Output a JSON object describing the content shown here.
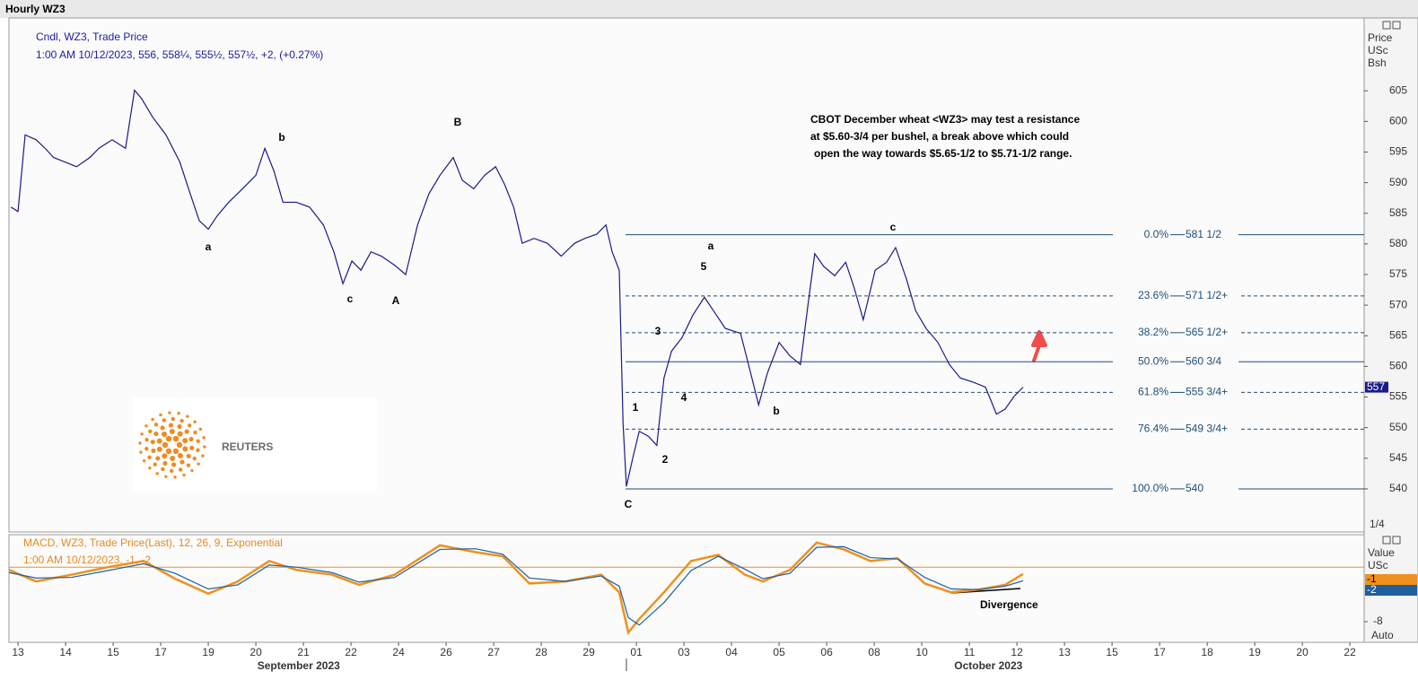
{
  "window_title": "Hourly WZ3",
  "chart_data": [
    {
      "type": "line",
      "legend": [
        "Cndl, WZ3, Trade Price",
        "1:00 AM 10/12/2023, 556, 558¼, 555½, 557½, +2, (+0.27%)"
      ],
      "y_label": [
        "Price",
        "USc",
        "Bsh"
      ],
      "annotation": [
        "CBOT December wheat <WZ3> may test a resistance",
        "at $5.60-3/4 per bushel, a break above which could",
        "open the way towards $5.65-1/2 to $5.71-1/2 range."
      ],
      "categories": [
        "13",
        "14",
        "15",
        "17",
        "19",
        "20",
        "21",
        "22",
        "24",
        "26",
        "27",
        "28",
        "29",
        "01",
        "03",
        "04",
        "05",
        "06",
        "08",
        "10",
        "11",
        "12",
        "13",
        "15",
        "17",
        "18",
        "19",
        "20",
        "22"
      ],
      "months": [
        "September 2023",
        "October 2023"
      ],
      "xlim": [
        -0.19,
        28.3
      ],
      "ylim": [
        533.4,
        616.6
      ],
      "yticks": [
        540,
        545,
        550,
        555,
        560,
        565,
        570,
        575,
        580,
        585,
        590,
        595,
        600,
        605
      ],
      "color": "#1a1a8c",
      "series": [
        {
          "name": "WZ3",
          "color": "#1a1a8c",
          "x": [
            -0.15,
            0,
            0.15,
            0.38,
            0.57,
            0.75,
            0.98,
            1.23,
            1.51,
            1.7,
            1.98,
            2.26,
            2.45,
            2.6,
            2.83,
            3.11,
            3.4,
            3.62,
            3.81,
            4,
            4.19,
            4.43,
            4.72,
            5,
            5.19,
            5.38,
            5.57,
            5.85,
            6.13,
            6.42,
            6.64,
            6.83,
            7.02,
            7.21,
            7.42,
            7.64,
            7.92,
            8.15,
            8.4,
            8.64,
            8.87,
            9.15,
            9.34,
            9.58,
            9.81,
            10.04,
            10.23,
            10.42,
            10.6,
            10.85,
            11.13,
            11.42,
            11.7,
            11.92,
            12.17,
            12.36,
            12.49,
            12.64,
            12.72,
            12.79,
            12.92,
            13.06,
            13.25,
            13.43,
            13.58,
            13.74,
            13.96,
            14.19,
            14.43,
            14.62,
            14.87,
            15.19,
            15.38,
            15.57,
            15.75,
            16,
            16.23,
            16.45,
            16.6,
            16.75,
            16.94,
            17.17,
            17.4,
            17.58,
            17.77,
            18.02,
            18.26,
            18.45,
            18.68,
            18.87,
            19.09,
            19.34,
            19.58,
            19.81,
            20.09,
            20.34,
            20.57,
            20.75,
            20.94,
            21.13
          ],
          "values": [
            586,
            585.3,
            597.8,
            597,
            595.6,
            594.1,
            593.4,
            592.6,
            594.1,
            595.6,
            597,
            595.6,
            605.1,
            603.7,
            600.7,
            597.8,
            593.4,
            588.2,
            583.8,
            582.4,
            584.6,
            586.8,
            589,
            591.2,
            595.6,
            591.9,
            586.8,
            586.8,
            586,
            583.1,
            578.7,
            573.5,
            577.2,
            575.7,
            578.7,
            578,
            576.5,
            575,
            583.1,
            588.2,
            591.2,
            594.1,
            590.4,
            589,
            591.2,
            592.6,
            589.7,
            586,
            580.1,
            580.9,
            580.1,
            578,
            580.1,
            580.9,
            581.6,
            583.1,
            578.7,
            575.7,
            550.7,
            540.4,
            544.9,
            549.4,
            548.6,
            547.1,
            558.1,
            562.5,
            564.7,
            568.4,
            571.3,
            569.1,
            566.2,
            565.4,
            559.6,
            553.7,
            558.8,
            563.9,
            561.7,
            560.3,
            569.6,
            578.4,
            576.3,
            574.8,
            577,
            572.8,
            567.6,
            575.7,
            577,
            579.4,
            574.2,
            569.1,
            566.2,
            563.9,
            560.3,
            558.1,
            557.4,
            556.6,
            552.2,
            553,
            555.1,
            556.6
          ]
        }
      ],
      "fib_levels": [
        {
          "label": "0.0%",
          "price_label": "581 1/2",
          "value": 581.5,
          "dashed": false
        },
        {
          "label": "23.6%",
          "price_label": "571 1/2+",
          "value": 571.5,
          "dashed": true
        },
        {
          "label": "38.2%",
          "price_label": "565 1/2+",
          "value": 565.5,
          "dashed": true
        },
        {
          "label": "50.0%",
          "price_label": "560 3/4",
          "value": 560.75,
          "dashed": false
        },
        {
          "label": "61.8%",
          "price_label": "555 3/4+",
          "value": 555.75,
          "dashed": true
        },
        {
          "label": "76.4%",
          "price_label": "549 3/4+",
          "value": 549.75,
          "dashed": true
        },
        {
          "label": "100.0%",
          "price_label": "540",
          "value": 540,
          "dashed": false
        }
      ],
      "fib_color": "#1f4e79",
      "wave_labels": [
        "a",
        "b",
        "c",
        "A",
        "B",
        "C",
        "1",
        "2",
        "3",
        "4",
        "5",
        "a",
        "b",
        "c"
      ],
      "last_price_tag": "557",
      "scale_tag": "1/4",
      "logo": "REUTERS"
    },
    {
      "type": "line",
      "legend": [
        "MACD, WZ3, Trade Price(Last),  12, 26, 9, Exponential",
        "1:00 AM 10/12/2023, -1, -2"
      ],
      "y_label": [
        "Value",
        "USc"
      ],
      "annotation": "Divergence",
      "xlim": [
        -0.19,
        28.3
      ],
      "ylim": [
        -10.9,
        4.5
      ],
      "yticks": [
        -8
      ],
      "scale_tag": "Auto",
      "series": [
        {
          "name": "MACD",
          "color": "#f0901e",
          "x": [
            -0.19,
            0.38,
            1.13,
            1.89,
            2.64,
            3.3,
            4,
            4.62,
            5.28,
            5.85,
            6.6,
            7.17,
            7.92,
            8.87,
            9.62,
            10.19,
            10.75,
            11.51,
            12.26,
            12.64,
            12.83,
            13.06,
            13.58,
            14.15,
            14.72,
            15.28,
            15.66,
            16.23,
            16.79,
            17.36,
            17.92,
            18.49,
            19.06,
            19.62,
            20.19,
            20.75,
            21.13
          ],
          "values": [
            -0.4,
            -2.1,
            -1.1,
            0,
            0.9,
            -1.7,
            -3.9,
            -2.1,
            0.9,
            -0.4,
            -1.1,
            -2.6,
            -1.1,
            3.2,
            2.2,
            1.6,
            -2.4,
            -2.1,
            -1.1,
            -3.7,
            -9.6,
            -7.6,
            -3.7,
            0.9,
            1.8,
            -1.1,
            -2.1,
            -0.4,
            3.6,
            2.6,
            0.9,
            1.3,
            -2.4,
            -3.7,
            -3.3,
            -2.6,
            -1
          ]
        },
        {
          "name": "Signal",
          "color": "#1f5f9e",
          "x": [
            -0.19,
            0.38,
            1.13,
            1.89,
            2.64,
            3.3,
            4,
            4.62,
            5.28,
            5.85,
            6.6,
            7.17,
            7.92,
            8.87,
            9.62,
            10.19,
            10.75,
            11.51,
            12.26,
            12.64,
            12.83,
            13.06,
            13.58,
            14.15,
            14.72,
            15.28,
            15.66,
            16.23,
            16.79,
            17.36,
            17.92,
            18.49,
            19.06,
            19.62,
            20.19,
            20.75,
            21.13
          ],
          "values": [
            -0.8,
            -1.6,
            -1.5,
            -0.5,
            0.5,
            -0.9,
            -3.2,
            -2.6,
            0.3,
            0,
            -0.8,
            -2.2,
            -1.5,
            2.6,
            2.7,
            1.9,
            -1.6,
            -2.1,
            -1.3,
            -2.8,
            -7.4,
            -8.5,
            -5.2,
            -0.5,
            1.6,
            -0.3,
            -1.7,
            -0.9,
            2.9,
            3,
            1.4,
            1.2,
            -1.5,
            -3.2,
            -3.3,
            -2.8,
            -2
          ]
        }
      ]
    }
  ]
}
